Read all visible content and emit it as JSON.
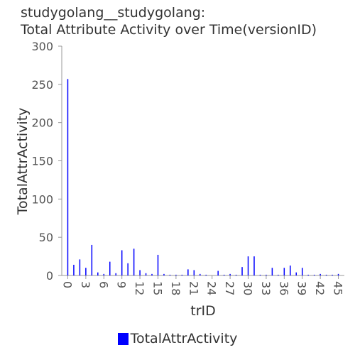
{
  "chart_data": {
    "type": "bar",
    "title_line1": "studygolang__studygolang:",
    "title_line2": "Total Attribute Activity over Time(versionID)",
    "xlabel": "trID",
    "ylabel": "TotalAttrActivity",
    "ylim": [
      0,
      300
    ],
    "xlim": [
      -1,
      46
    ],
    "y_ticks": [
      "0",
      "50",
      "100",
      "150",
      "200",
      "250",
      "300"
    ],
    "x_ticks": [
      "0",
      "3",
      "6",
      "9",
      "12",
      "15",
      "18",
      "21",
      "24",
      "27",
      "30",
      "33",
      "36",
      "39",
      "42",
      "45"
    ],
    "grid": false,
    "legend_position": "bottom",
    "series": [
      {
        "name": "TotalAttrActivity",
        "color": "#0000ff",
        "x": [
          0,
          1,
          2,
          3,
          4,
          5,
          6,
          7,
          8,
          9,
          10,
          11,
          12,
          13,
          14,
          15,
          16,
          17,
          18,
          19,
          20,
          21,
          22,
          23,
          24,
          25,
          26,
          27,
          28,
          29,
          30,
          31,
          32,
          33,
          34,
          35,
          36,
          37,
          38,
          39,
          40,
          41,
          42,
          43,
          44,
          45
        ],
        "values": [
          257,
          14,
          21,
          10,
          40,
          4,
          2,
          18,
          3,
          33,
          16,
          35,
          7,
          3,
          2,
          27,
          2,
          1,
          1,
          1,
          8,
          7,
          2,
          1,
          0,
          6,
          1,
          2,
          1,
          11,
          25,
          25,
          1,
          1,
          10,
          1,
          10,
          13,
          4,
          10,
          1,
          1,
          2,
          1,
          1,
          2
        ]
      }
    ]
  }
}
